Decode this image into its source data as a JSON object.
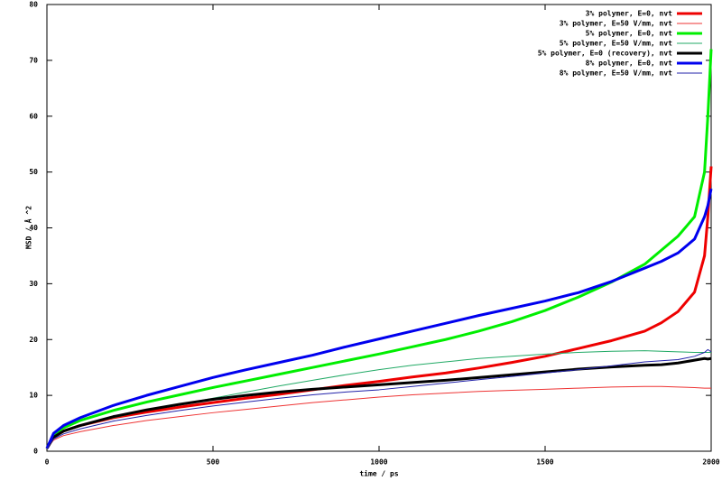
{
  "chart_data": {
    "type": "line",
    "x_label": "time / ps",
    "y_label": "MSD / Å ^2",
    "x": [
      0,
      20,
      50,
      100,
      200,
      300,
      400,
      500,
      600,
      700,
      800,
      900,
      1000,
      1100,
      1200,
      1300,
      1400,
      1500,
      1600,
      1700,
      1800,
      1850,
      1900,
      1950,
      1980,
      1990,
      2000
    ],
    "xlim": [
      0,
      2000
    ],
    "xticks": [
      0,
      500,
      1000,
      1500,
      2000
    ],
    "ylim": [
      0,
      80
    ],
    "yticks": [
      0,
      10,
      20,
      30,
      40,
      50,
      60,
      70,
      80
    ],
    "grid": false,
    "legend": "top-right",
    "series": [
      {
        "name": "3% polymer, E=0, nvt",
        "color": "#ee0000",
        "line_width": 3,
        "values": [
          0.5,
          2.5,
          3.6,
          4.6,
          6.0,
          7.0,
          7.9,
          8.7,
          9.5,
          10.2,
          11.0,
          11.8,
          12.5,
          13.3,
          14.0,
          14.9,
          15.9,
          17.0,
          18.4,
          19.8,
          21.5,
          23,
          25,
          28.5,
          35,
          42,
          51
        ]
      },
      {
        "name": "3% polymer, E=50 V/mm, nvt",
        "color": "#ee3333",
        "line_width": 1,
        "values": [
          0.5,
          2.0,
          2.8,
          3.5,
          4.6,
          5.5,
          6.2,
          6.9,
          7.5,
          8.1,
          8.7,
          9.2,
          9.7,
          10.1,
          10.4,
          10.7,
          10.9,
          11.1,
          11.3,
          11.5,
          11.6,
          11.6,
          11.5,
          11.4,
          11.3,
          11.3,
          11.3
        ]
      },
      {
        "name": "5% polymer, E=0, nvt",
        "color": "#00ee00",
        "line_width": 3,
        "values": [
          0.5,
          3,
          4.2,
          5.5,
          7.3,
          8.8,
          10.1,
          11.4,
          12.6,
          13.8,
          15.0,
          16.2,
          17.4,
          18.7,
          20.0,
          21.5,
          23.2,
          25.2,
          27.6,
          30.3,
          33.5,
          36,
          38.5,
          42,
          50,
          60,
          72
        ]
      },
      {
        "name": "5% polymer, E=50 V/mm, nvt",
        "color": "#22aa66",
        "line_width": 1,
        "values": [
          0.5,
          2.5,
          3.5,
          4.5,
          6.0,
          7.3,
          8.4,
          9.5,
          10.6,
          11.7,
          12.7,
          13.7,
          14.6,
          15.4,
          16.0,
          16.6,
          17.0,
          17.4,
          17.7,
          17.9,
          18.0,
          17.9,
          17.8,
          17.7,
          17.7,
          17.7,
          17.7
        ]
      },
      {
        "name": "5% polymer, E=0 (recovery), nvt",
        "color": "#000000",
        "line_width": 3,
        "values": [
          0.5,
          2.5,
          3.6,
          4.6,
          6.2,
          7.4,
          8.4,
          9.3,
          10.0,
          10.6,
          11.1,
          11.5,
          11.9,
          12.3,
          12.7,
          13.2,
          13.7,
          14.2,
          14.7,
          15.1,
          15.4,
          15.5,
          15.8,
          16.3,
          16.6,
          16.5,
          16.6
        ]
      },
      {
        "name": "8% polymer, E=0, nvt",
        "color": "#0000ee",
        "line_width": 3,
        "values": [
          0.5,
          3.2,
          4.6,
          6.0,
          8.2,
          10.0,
          11.6,
          13.2,
          14.6,
          15.9,
          17.2,
          18.7,
          20.1,
          21.5,
          22.9,
          24.3,
          25.6,
          26.9,
          28.4,
          30.4,
          32.8,
          34,
          35.5,
          38,
          42,
          44,
          47
        ]
      },
      {
        "name": "8% polymer, E=50 V/mm, nvt",
        "color": "#2222aa",
        "line_width": 1,
        "values": [
          0.5,
          2.2,
          3.1,
          4.0,
          5.4,
          6.4,
          7.3,
          8.1,
          8.8,
          9.5,
          10.1,
          10.6,
          11.0,
          11.6,
          12.2,
          12.8,
          13.4,
          14.0,
          14.6,
          15.3,
          16.0,
          16.2,
          16.4,
          17.0,
          17.7,
          18.2,
          17.8
        ]
      }
    ]
  }
}
